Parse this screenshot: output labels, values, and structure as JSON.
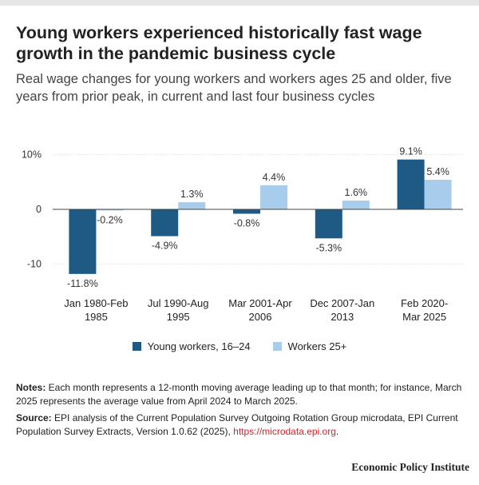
{
  "title": "Young workers experienced historically fast wage growth in the pandemic business cycle",
  "subtitle": "Real wage changes for young workers and workers ages 25 and older, five years from prior peak, in current and last four business cycles",
  "colors": {
    "young": "#1f5a84",
    "older": "#a8cdec",
    "baseline": "#444444",
    "grid": "#dddddd",
    "link": "#d2232a"
  },
  "chart_data": {
    "type": "bar",
    "categories": [
      [
        "Jan 1980-Feb",
        "1985"
      ],
      [
        "Jul 1990-Aug",
        "1995"
      ],
      [
        "Mar 2001-Apr",
        "2006"
      ],
      [
        "Dec 2007-Jan",
        "2013"
      ],
      [
        "Feb 2020-",
        "Mar 2025"
      ]
    ],
    "series": [
      {
        "name": "Young workers, 16–24",
        "values": [
          -11.8,
          -4.9,
          -0.8,
          -5.3,
          9.1
        ],
        "labels": [
          "-11.8%",
          "-4.9%",
          "-0.8%",
          "-5.3%",
          "9.1%"
        ]
      },
      {
        "name": "Workers 25+",
        "values": [
          -0.2,
          1.3,
          4.4,
          1.6,
          5.4
        ],
        "labels": [
          "-0.2%",
          "1.3%",
          "4.4%",
          "1.6%",
          "5.4%"
        ]
      }
    ],
    "yticks": [
      {
        "value": 10,
        "label": "10%"
      },
      {
        "value": 0,
        "label": "0"
      },
      {
        "value": -10,
        "label": "-10"
      }
    ],
    "ylim": [
      -13.5,
      10.5
    ],
    "grid": true
  },
  "notes": {
    "label": "Notes:",
    "text": " Each month represents a 12-month moving average leading up to that month; for instance, March 2025 represents the average value from April 2024 to March 2025."
  },
  "source": {
    "label": "Source:",
    "text": " EPI analysis of the Current Population Survey Outgoing Rotation Group microdata, EPI Current Population Survey Extracts, Version 1.0.62 (2025), ",
    "link": "https://microdata.epi.org",
    "end": "."
  },
  "brand": "Economic Policy Institute"
}
